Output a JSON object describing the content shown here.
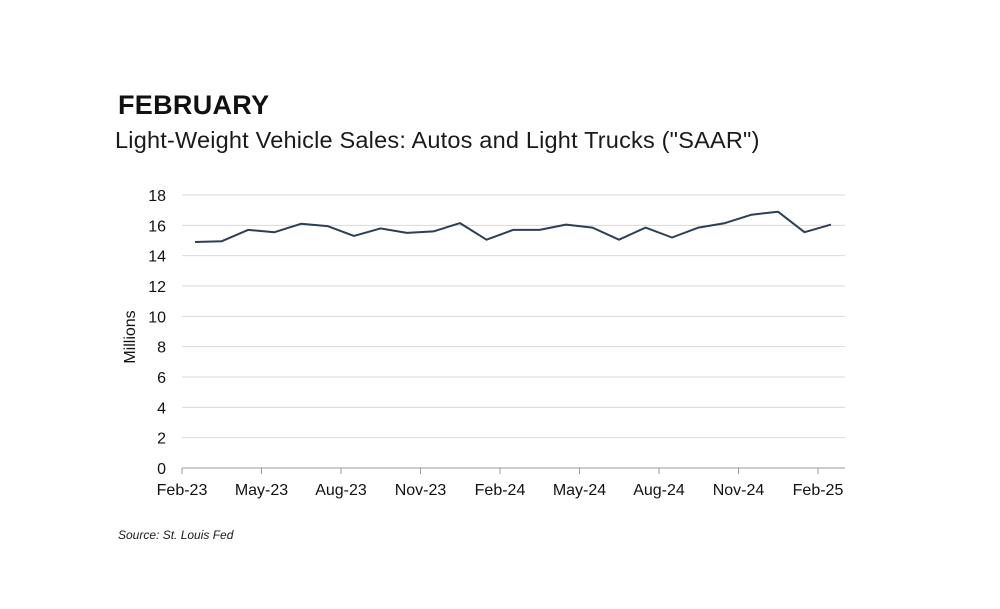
{
  "header": {
    "heading": "FEBRUARY",
    "subtitle": "Light-Weight Vehicle Sales: Autos and Light Trucks (\"SAAR\")"
  },
  "footer": {
    "source": "Source: St. Louis Fed"
  },
  "colors": {
    "line": "#2b3f55",
    "grid": "#d9d9d9",
    "axis": "#9a9a9a"
  },
  "chart_data": {
    "type": "line",
    "title": "Light-Weight Vehicle Sales: Autos and Light Trucks (\"SAAR\")",
    "xlabel": "",
    "ylabel": "Millions",
    "ylim": [
      0,
      18
    ],
    "yticks": [
      0,
      2,
      4,
      6,
      8,
      10,
      12,
      14,
      16,
      18
    ],
    "grid": true,
    "legend": "none",
    "xtick_labels": [
      "Feb-23",
      "May-23",
      "Aug-23",
      "Nov-23",
      "Feb-24",
      "May-24",
      "Aug-24",
      "Nov-24",
      "Feb-25"
    ],
    "x": [
      "Feb-23",
      "Mar-23",
      "Apr-23",
      "May-23",
      "Jun-23",
      "Jul-23",
      "Aug-23",
      "Sep-23",
      "Oct-23",
      "Nov-23",
      "Dec-23",
      "Jan-24",
      "Feb-24",
      "Mar-24",
      "Apr-24",
      "May-24",
      "Jun-24",
      "Jul-24",
      "Aug-24",
      "Sep-24",
      "Oct-24",
      "Nov-24",
      "Dec-24",
      "Jan-25",
      "Feb-25"
    ],
    "series": [
      {
        "values": [
          14.9,
          14.95,
          15.7,
          15.55,
          16.1,
          15.95,
          15.3,
          15.8,
          15.5,
          15.6,
          16.15,
          15.05,
          15.7,
          15.7,
          16.05,
          15.85,
          15.05,
          15.85,
          15.2,
          15.85,
          16.15,
          16.7,
          16.9,
          15.55,
          16.05
        ]
      }
    ]
  }
}
